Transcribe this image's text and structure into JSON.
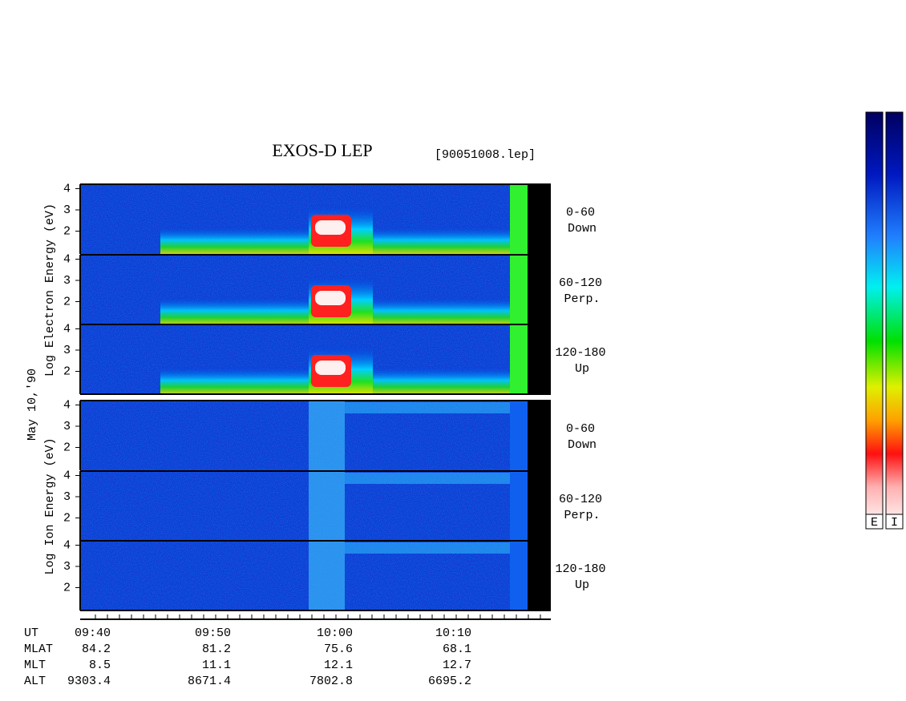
{
  "title": "EXOS-D LEP",
  "file": "[90051008.lep]",
  "date": "May 10,'90",
  "electron_axis_label": "Log  Electron  Energy (eV)",
  "ion_axis_label": "Log   Ion  Energy (eV)",
  "electron_panels": [
    {
      "range": "0-60",
      "direction": "Down",
      "yticks": [
        4,
        3,
        2
      ]
    },
    {
      "range": "60-120",
      "direction": "Perp.",
      "yticks": [
        4,
        3,
        2
      ]
    },
    {
      "range": "120-180",
      "direction": "Up",
      "yticks": [
        4,
        3,
        2
      ]
    }
  ],
  "ion_panels": [
    {
      "range": "0-60",
      "direction": "Down",
      "yticks": [
        4,
        3,
        2
      ]
    },
    {
      "range": "60-120",
      "direction": "Perp.",
      "yticks": [
        4,
        3,
        2
      ]
    },
    {
      "range": "120-180",
      "direction": "Up",
      "yticks": [
        4,
        3,
        2
      ]
    }
  ],
  "ephemeris": [
    {
      "name": "UT",
      "values": [
        "09:40",
        "09:50",
        "10:00",
        "10:10"
      ]
    },
    {
      "name": "MLAT",
      "values": [
        "84.2",
        "81.2",
        "75.6",
        "68.1"
      ]
    },
    {
      "name": "MLT",
      "values": [
        "8.5",
        "11.1",
        "12.1",
        "12.7"
      ]
    },
    {
      "name": "ALT",
      "values": [
        "9303.4",
        "8671.4",
        "7802.8",
        "6695.2"
      ]
    }
  ],
  "colorbar_labels": [
    "E",
    "I"
  ]
}
